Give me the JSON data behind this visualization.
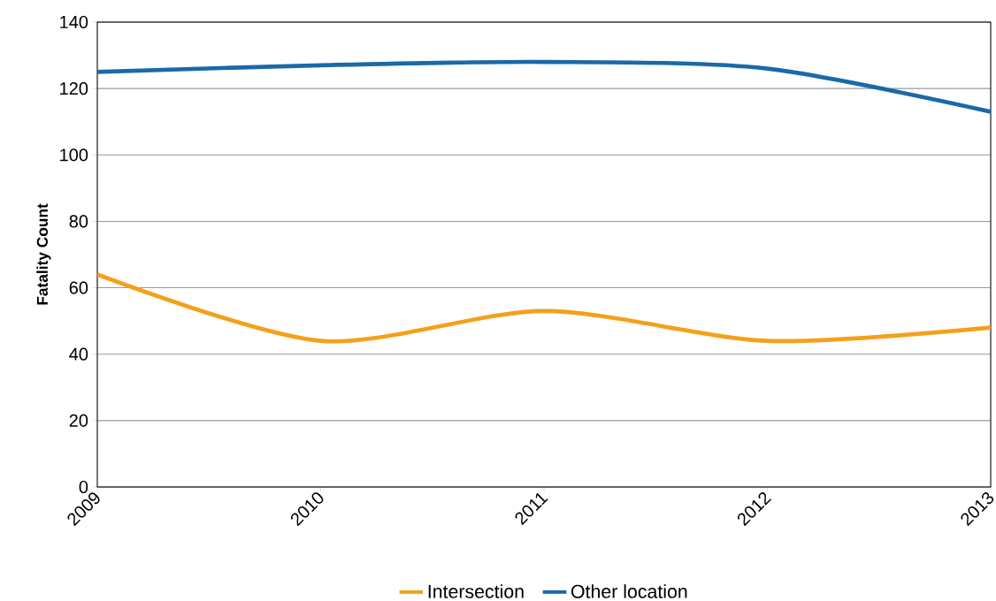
{
  "chart_data": {
    "type": "line",
    "ylabel": "Fatality Count",
    "categories": [
      "2009",
      "2010",
      "2011",
      "2012",
      "2013"
    ],
    "series": [
      {
        "name": "Intersection",
        "color": "#f5a01a",
        "values": [
          64,
          44,
          53,
          44,
          48
        ]
      },
      {
        "name": "Other location",
        "color": "#1a69a8",
        "values": [
          125,
          127,
          128,
          126,
          113
        ]
      }
    ],
    "ylim": [
      0,
      140
    ],
    "yticks": [
      0,
      20,
      40,
      60,
      80,
      100,
      120,
      140
    ],
    "grid": "y",
    "legend": "bottom"
  }
}
